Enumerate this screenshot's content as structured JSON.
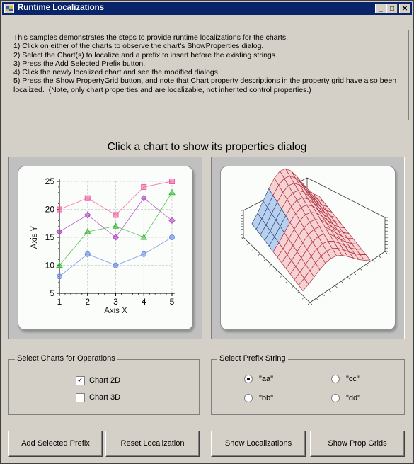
{
  "window": {
    "title": "Runtime Localizations",
    "minimize_glyph": "_",
    "maximize_glyph": "□",
    "close_glyph": "✕"
  },
  "info": {
    "lines": [
      "This samples demonstrates the steps to provide runtime localizations for the charts.",
      "",
      "1) Click on either of the charts to observe the chart's ShowProperties dialog.",
      "2) Select the Chart(s) to localize and a prefix to insert before the existing strings.",
      "3) Press the Add Selected Prefix button.",
      "4) Click the newly localized chart and see the modified dialogs.",
      "5) Press the Show PropertyGrid button, and note that Chart property descriptions in the property grid have also been",
      "localized.  (Note, only chart properties and are localizable, not inherited control properties.)"
    ]
  },
  "heading": "Click a chart to show its properties dialog",
  "chart_data": [
    {
      "type": "line",
      "title": "",
      "xlabel": "Axis X",
      "ylabel": "Axis Y",
      "x": [
        1,
        2,
        3,
        4,
        5
      ],
      "xlim": [
        1,
        5
      ],
      "ylim": [
        5,
        25
      ],
      "xticks": [
        "1",
        "2",
        "3",
        "4",
        "5"
      ],
      "yticks": [
        "5",
        "10",
        "15",
        "20",
        "25"
      ],
      "grid": true,
      "series": [
        {
          "values": [
            20,
            22,
            19,
            24,
            25
          ],
          "color": "#f25aa0",
          "marker": "square"
        },
        {
          "values": [
            16,
            19,
            15,
            22,
            18
          ],
          "color": "#b044c4",
          "marker": "diamond"
        },
        {
          "values": [
            10,
            16,
            17,
            15,
            23
          ],
          "color": "#3cb83c",
          "marker": "triangle"
        },
        {
          "values": [
            8,
            12,
            10,
            12,
            15
          ],
          "color": "#6a8ae6",
          "marker": "circle"
        }
      ]
    },
    {
      "type": "surface3d",
      "title": ""
    }
  ],
  "charts_group": {
    "title": "Select Charts for Operations",
    "items": [
      {
        "label": "Chart 2D",
        "checked": true,
        "mark": "✓"
      },
      {
        "label": "Chart 3D",
        "checked": false,
        "mark": ""
      }
    ]
  },
  "prefix_group": {
    "title": "Select Prefix String",
    "options": [
      {
        "label": "\"aa\"",
        "selected": true
      },
      {
        "label": "\"cc\"",
        "selected": false
      },
      {
        "label": "\"bb\"",
        "selected": false
      },
      {
        "label": "\"dd\"",
        "selected": false
      }
    ]
  },
  "buttons": {
    "add_prefix": "Add Selected Prefix",
    "reset": "Reset Localization",
    "show_localizations": "Show Localizations",
    "show_prop_grids": "Show Prop Grids"
  }
}
